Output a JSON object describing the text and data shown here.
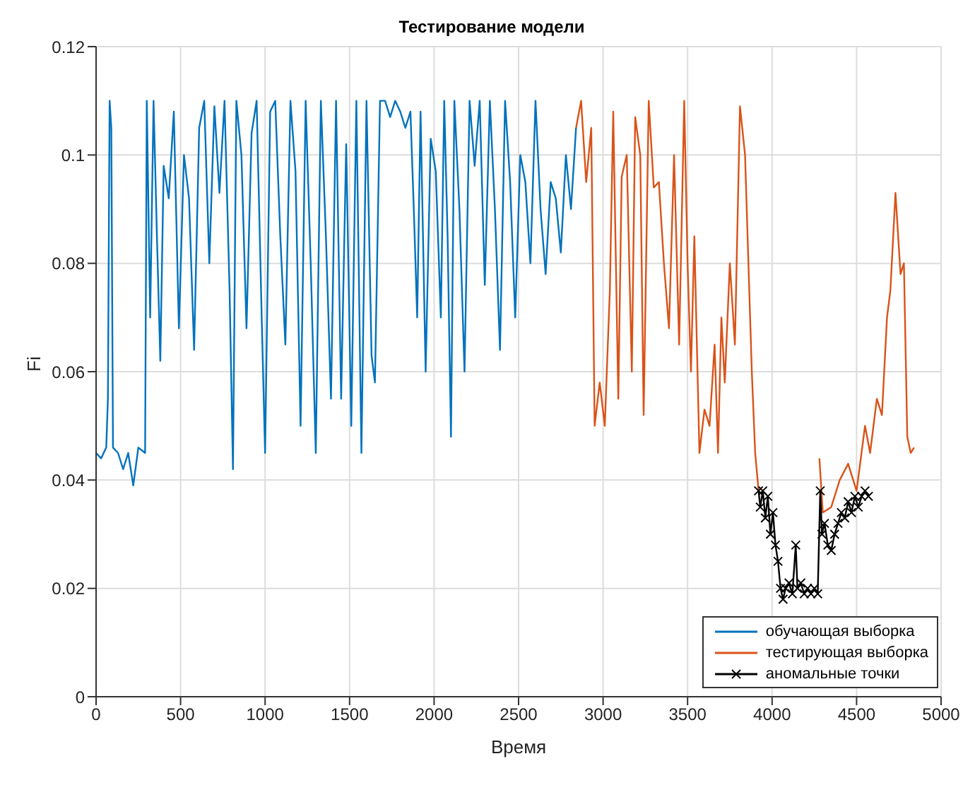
{
  "chart_data": {
    "type": "line",
    "title": "Тестирование модели",
    "xlabel": "Время",
    "ylabel": "Fi",
    "xlim": [
      0,
      5000
    ],
    "xticks": [
      0,
      500,
      1000,
      1500,
      2000,
      2500,
      3000,
      3500,
      4000,
      4500,
      5000
    ],
    "ylim": [
      0,
      0.12
    ],
    "yticks": [
      0,
      0.02,
      0.04,
      0.06,
      0.08,
      0.1,
      0.12
    ],
    "grid": true,
    "legend": "bottom right",
    "line_style": "solid",
    "series": [
      {
        "name": "обучающая выборка",
        "color": "#0072bd",
        "marker": "none",
        "x": [
          0,
          30,
          60,
          70,
          80,
          90,
          100,
          130,
          160,
          190,
          220,
          250,
          290,
          300,
          320,
          340,
          360,
          380,
          400,
          430,
          460,
          490,
          520,
          550,
          580,
          610,
          640,
          670,
          700,
          730,
          760,
          790,
          810,
          830,
          860,
          890,
          920,
          950,
          980,
          1000,
          1030,
          1060,
          1090,
          1120,
          1150,
          1180,
          1210,
          1240,
          1270,
          1300,
          1330,
          1360,
          1390,
          1420,
          1450,
          1480,
          1510,
          1540,
          1570,
          1600,
          1630,
          1650,
          1680,
          1710,
          1740,
          1770,
          1800,
          1830,
          1860,
          1880,
          1900,
          1920,
          1950,
          1980,
          2010,
          2040,
          2060,
          2080,
          2100,
          2120,
          2150,
          2180,
          2210,
          2240,
          2270,
          2300,
          2330,
          2360,
          2390,
          2420,
          2450,
          2480,
          2510,
          2540,
          2570,
          2600,
          2630,
          2660,
          2690,
          2720,
          2750,
          2780,
          2810,
          2840
        ],
        "values": [
          0.045,
          0.044,
          0.046,
          0.055,
          0.11,
          0.105,
          0.046,
          0.045,
          0.042,
          0.045,
          0.039,
          0.046,
          0.045,
          0.11,
          0.07,
          0.11,
          0.085,
          0.062,
          0.098,
          0.092,
          0.108,
          0.068,
          0.1,
          0.092,
          0.064,
          0.105,
          0.11,
          0.08,
          0.109,
          0.093,
          0.11,
          0.075,
          0.042,
          0.11,
          0.1,
          0.068,
          0.104,
          0.11,
          0.07,
          0.045,
          0.108,
          0.11,
          0.085,
          0.065,
          0.11,
          0.097,
          0.05,
          0.11,
          0.08,
          0.045,
          0.11,
          0.085,
          0.055,
          0.11,
          0.055,
          0.102,
          0.05,
          0.11,
          0.045,
          0.11,
          0.063,
          0.058,
          0.11,
          0.11,
          0.107,
          0.11,
          0.108,
          0.105,
          0.108,
          0.09,
          0.07,
          0.108,
          0.06,
          0.103,
          0.097,
          0.07,
          0.11,
          0.085,
          0.048,
          0.11,
          0.09,
          0.06,
          0.11,
          0.098,
          0.11,
          0.076,
          0.11,
          0.09,
          0.064,
          0.11,
          0.095,
          0.07,
          0.1,
          0.095,
          0.08,
          0.11,
          0.09,
          0.078,
          0.095,
          0.092,
          0.082,
          0.1,
          0.09,
          0.105
        ]
      },
      {
        "name": "тестирующая выборка",
        "color": "#d95319",
        "marker": "none",
        "x": [
          2840,
          2870,
          2900,
          2930,
          2950,
          2980,
          3010,
          3040,
          3060,
          3090,
          3110,
          3140,
          3170,
          3190,
          3220,
          3240,
          3270,
          3300,
          3330,
          3360,
          3390,
          3420,
          3450,
          3480,
          3500,
          3520,
          3540,
          3570,
          3600,
          3630,
          3660,
          3680,
          3700,
          3720,
          3750,
          3780,
          3810,
          3840,
          3860,
          3880,
          3900,
          3920,
          4000,
          4280,
          4300,
          4350,
          4400,
          4450,
          4500,
          4550,
          4580,
          4620,
          4650,
          4680,
          4700,
          4730,
          4760,
          4780,
          4800,
          4820,
          4840
        ],
        "values": [
          0.105,
          0.11,
          0.095,
          0.105,
          0.05,
          0.058,
          0.05,
          0.075,
          0.108,
          0.055,
          0.096,
          0.1,
          0.06,
          0.107,
          0.1,
          0.052,
          0.11,
          0.094,
          0.095,
          0.08,
          0.068,
          0.1,
          0.065,
          0.11,
          0.08,
          0.06,
          0.085,
          0.045,
          0.053,
          0.05,
          0.065,
          0.045,
          0.07,
          0.058,
          0.08,
          0.065,
          0.109,
          0.1,
          0.08,
          0.06,
          0.045,
          0.038,
          null,
          0.044,
          0.034,
          0.035,
          0.04,
          0.043,
          0.038,
          0.05,
          0.045,
          0.055,
          0.052,
          0.07,
          0.075,
          0.093,
          0.078,
          0.08,
          0.048,
          0.045,
          0.046
        ]
      },
      {
        "name": "аномальные точки",
        "color": "#000000",
        "marker": "cross",
        "x": [
          3920,
          3930,
          3945,
          3960,
          3975,
          3990,
          4005,
          4020,
          4035,
          4050,
          4065,
          4080,
          4100,
          4120,
          4140,
          4150,
          4170,
          4190,
          4210,
          4230,
          4250,
          4270,
          4285,
          4295,
          4310,
          4330,
          4350,
          4370,
          4390,
          4410,
          4430,
          4450,
          4470,
          4490,
          4510,
          4530,
          4550,
          4570
        ],
        "values": [
          0.038,
          0.035,
          0.038,
          0.033,
          0.037,
          0.03,
          0.034,
          0.028,
          0.025,
          0.02,
          0.018,
          0.02,
          0.021,
          0.019,
          0.028,
          0.02,
          0.021,
          0.019,
          0.02,
          0.019,
          0.02,
          0.019,
          0.038,
          0.03,
          0.032,
          0.028,
          0.027,
          0.03,
          0.032,
          0.034,
          0.033,
          0.036,
          0.034,
          0.037,
          0.035,
          0.037,
          0.038,
          0.037
        ]
      }
    ]
  }
}
